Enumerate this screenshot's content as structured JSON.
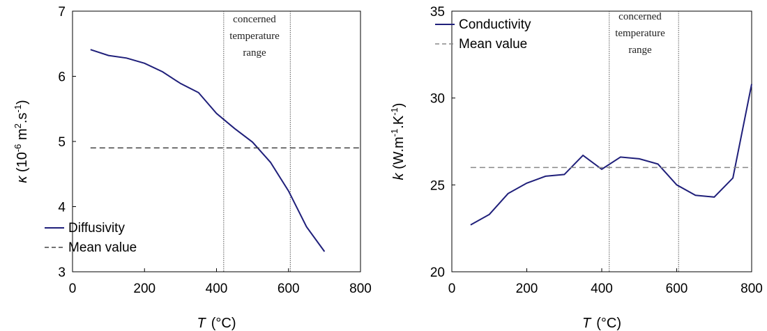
{
  "chart_data": [
    {
      "type": "line",
      "x_ticks": [
        "0",
        "200",
        "400",
        "600",
        "800"
      ],
      "y_ticks": [
        "3",
        "4",
        "5",
        "6",
        "7"
      ],
      "xlim": [
        0,
        800
      ],
      "ylim": [
        3,
        7
      ],
      "xlabel": {
        "symbol": "T",
        "unit": "(°C)"
      },
      "ylabel": {
        "symbol": "κ",
        "unit_open": "(10",
        "exp": "-6",
        "unit_mid": " m",
        "exp2": "2",
        "unit_mid2": ".s",
        "exp3": "-1",
        "unit_close": ")"
      },
      "series": [
        {
          "name": "Diffusivity",
          "color": "#1f1f7a",
          "style": "solid",
          "x": [
            50,
            100,
            150,
            200,
            250,
            300,
            350,
            400,
            450,
            500,
            550,
            600,
            650,
            700
          ],
          "y": [
            6.41,
            6.32,
            6.28,
            6.2,
            6.07,
            5.89,
            5.75,
            5.43,
            5.2,
            4.99,
            4.68,
            4.24,
            3.69,
            3.31
          ]
        },
        {
          "name": "Mean value",
          "color": "#444444",
          "style": "dashed",
          "x": [
            50,
            800
          ],
          "y": [
            4.9,
            4.9
          ]
        }
      ],
      "vlines": [
        420,
        605
      ],
      "annotation": [
        "concerned",
        "temperature",
        "range"
      ],
      "legend_position": "bottom-left"
    },
    {
      "type": "line",
      "x_ticks": [
        "0",
        "200",
        "400",
        "600",
        "800"
      ],
      "y_ticks": [
        "20",
        "25",
        "30",
        "35"
      ],
      "xlim": [
        0,
        800
      ],
      "ylim": [
        20,
        35
      ],
      "xlabel": {
        "symbol": "T",
        "unit": "(°C)"
      },
      "ylabel": {
        "symbol": "k",
        "unit_open": "(W.m",
        "exp": "-1",
        "unit_mid": ".K",
        "exp2": "-1",
        "unit_close": ")"
      },
      "series": [
        {
          "name": "Conductivity",
          "color": "#1f1f7a",
          "style": "solid",
          "x": [
            50,
            100,
            150,
            200,
            250,
            300,
            350,
            400,
            450,
            500,
            550,
            600,
            650,
            700,
            750,
            800
          ],
          "y": [
            22.7,
            23.3,
            24.5,
            25.1,
            25.5,
            25.6,
            26.7,
            25.9,
            26.6,
            26.5,
            26.2,
            25.0,
            24.4,
            24.3,
            25.4,
            30.8
          ]
        },
        {
          "name": "Mean value",
          "color": "#888888",
          "style": "dashed",
          "x": [
            50,
            800
          ],
          "y": [
            26.0,
            26.0
          ]
        }
      ],
      "vlines": [
        420,
        605
      ],
      "annotation": [
        "concerned",
        "temperature",
        "range"
      ],
      "legend_position": "top-left"
    }
  ]
}
